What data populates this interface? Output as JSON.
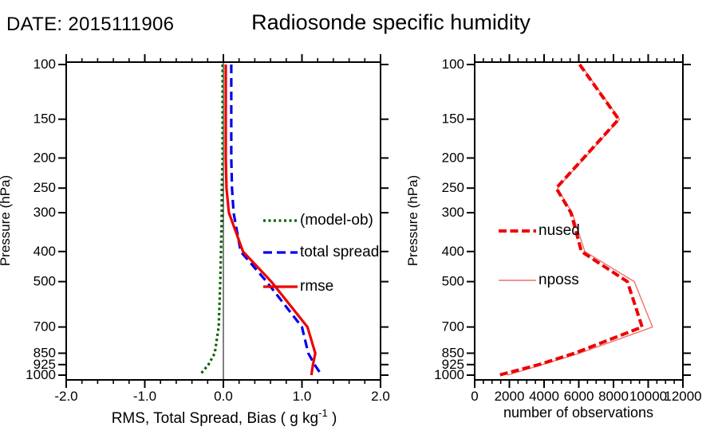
{
  "header": {
    "date_label": "DATE: 2015111906",
    "title": "Radiosonde specific humidity"
  },
  "chart_data": [
    {
      "id": "rms-spread-bias-profile",
      "type": "line",
      "xlabel": "RMS, Total Spread, Bias ( g kg-1 )",
      "xlabel_segments": [
        {
          "text": "RMS, Total Spread, Bias ( g kg"
        },
        {
          "text": "-1",
          "sup": true
        },
        {
          "text": " )"
        }
      ],
      "ylabel": "Pressure (hPa)",
      "yscale": "log",
      "ylim": [
        100,
        1000
      ],
      "y_ticks": [
        100,
        150,
        200,
        250,
        300,
        400,
        500,
        700,
        850,
        925,
        1000
      ],
      "xlim": [
        -2.0,
        2.0
      ],
      "x_major_ticks": [
        -2.0,
        -1.0,
        0.0,
        1.0,
        2.0
      ],
      "x_tick_labels": [
        "-2.0",
        "-1.0",
        "0.0",
        "1.0",
        "2.0"
      ],
      "x_minor_step": 0.2,
      "ref_line_x": 0.0,
      "grid": false,
      "legend_position": "inside-middle-right",
      "levels": [
        100,
        150,
        200,
        250,
        300,
        400,
        500,
        700,
        850,
        925,
        1000
      ],
      "series": [
        {
          "name": "(model-ob)",
          "color": "#006400",
          "style": "dotted",
          "width": 3.2,
          "zorder": 1,
          "values": [
            -0.01,
            -0.01,
            -0.01,
            -0.02,
            -0.02,
            -0.03,
            -0.04,
            -0.06,
            -0.11,
            -0.19,
            -0.3
          ]
        },
        {
          "name": "total spread",
          "color": "#0000ee",
          "style": "dashed",
          "width": 3.2,
          "zorder": 2,
          "values": [
            0.1,
            0.1,
            0.1,
            0.11,
            0.13,
            0.22,
            0.55,
            1.0,
            1.08,
            1.16,
            1.25
          ]
        },
        {
          "name": "rmse",
          "color": "#ee0000",
          "style": "solid",
          "width": 3.2,
          "zorder": 3,
          "values": [
            0.03,
            0.03,
            0.03,
            0.04,
            0.07,
            0.25,
            0.61,
            1.07,
            1.17,
            1.14,
            1.12
          ]
        }
      ]
    },
    {
      "id": "observation-counts-profile",
      "type": "line",
      "xlabel": "number of observations",
      "xlabel_segments": [
        {
          "text": "number of observations"
        }
      ],
      "ylabel": "Pressure (hPa)",
      "yscale": "log",
      "ylim": [
        100,
        1000
      ],
      "y_ticks": [
        100,
        150,
        200,
        250,
        300,
        400,
        500,
        700,
        850,
        925,
        1000
      ],
      "xlim": [
        0,
        12000
      ],
      "x_major_ticks": [
        0,
        2000,
        4000,
        6000,
        8000,
        10000,
        12000
      ],
      "x_tick_labels": [
        "0",
        "2000",
        "4000",
        "6000",
        "8000",
        "10000",
        "12000"
      ],
      "x_minor_step": 500,
      "ref_line_x": null,
      "grid": false,
      "legend_position": "inside-middle-left",
      "levels": [
        100,
        150,
        200,
        250,
        300,
        400,
        500,
        700,
        850,
        925,
        1000
      ],
      "series": [
        {
          "name": "nused",
          "color": "#ee0000",
          "style": "thick-dashed",
          "width": 4.0,
          "zorder": 2,
          "values": [
            6050,
            8300,
            6280,
            4700,
            5550,
            6150,
            8800,
            9650,
            5750,
            3700,
            1400
          ]
        },
        {
          "name": "nposs",
          "color": "#f07070",
          "style": "solid",
          "width": 1.4,
          "zorder": 1,
          "values": [
            6100,
            8350,
            6330,
            4760,
            5620,
            6350,
            9200,
            10250,
            6050,
            3900,
            1900
          ]
        }
      ]
    }
  ]
}
